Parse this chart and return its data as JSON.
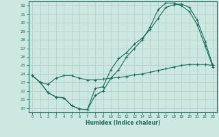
{
  "title": "",
  "xlabel": "Humidex (Indice chaleur)",
  "bg_color": "#cce8e0",
  "line_color": "#1a6b5a",
  "grid_color": "#aacfc8",
  "xlim": [
    -0.5,
    23.5
  ],
  "ylim": [
    19.5,
    32.5
  ],
  "xticks": [
    0,
    1,
    2,
    3,
    4,
    5,
    6,
    7,
    8,
    9,
    10,
    11,
    12,
    13,
    14,
    15,
    16,
    17,
    18,
    19,
    20,
    21,
    22,
    23
  ],
  "yticks": [
    20,
    21,
    22,
    23,
    24,
    25,
    26,
    27,
    28,
    29,
    30,
    31,
    32
  ],
  "line1_x": [
    0,
    1,
    2,
    3,
    4,
    5,
    6,
    7,
    8,
    9,
    10,
    11,
    12,
    13,
    14,
    15,
    16,
    17,
    18,
    19,
    20,
    21,
    22,
    23
  ],
  "line1_y": [
    23.8,
    23.0,
    21.8,
    21.3,
    21.2,
    20.3,
    19.9,
    19.8,
    22.3,
    22.5,
    24.5,
    25.8,
    26.5,
    27.5,
    28.2,
    29.2,
    30.5,
    31.8,
    32.1,
    32.2,
    31.8,
    30.3,
    27.8,
    25.0
  ],
  "line2_x": [
    0,
    1,
    2,
    3,
    4,
    5,
    6,
    7,
    8,
    9,
    10,
    11,
    12,
    13,
    14,
    15,
    16,
    17,
    18,
    19,
    20,
    21,
    22,
    23
  ],
  "line2_y": [
    23.8,
    23.0,
    21.8,
    21.3,
    21.2,
    20.3,
    19.9,
    19.8,
    21.5,
    22.0,
    23.5,
    24.5,
    26.0,
    27.0,
    28.0,
    29.5,
    31.5,
    32.3,
    32.3,
    32.0,
    31.3,
    29.8,
    27.3,
    24.8
  ],
  "line3_x": [
    0,
    1,
    2,
    3,
    4,
    5,
    6,
    7,
    8,
    9,
    10,
    11,
    12,
    13,
    14,
    15,
    16,
    17,
    18,
    19,
    20,
    21,
    22,
    23
  ],
  "line3_y": [
    23.8,
    23.0,
    22.8,
    23.5,
    23.8,
    23.8,
    23.5,
    23.3,
    23.3,
    23.4,
    23.5,
    23.6,
    23.7,
    23.9,
    24.0,
    24.2,
    24.4,
    24.6,
    24.8,
    25.0,
    25.1,
    25.1,
    25.1,
    25.0
  ]
}
